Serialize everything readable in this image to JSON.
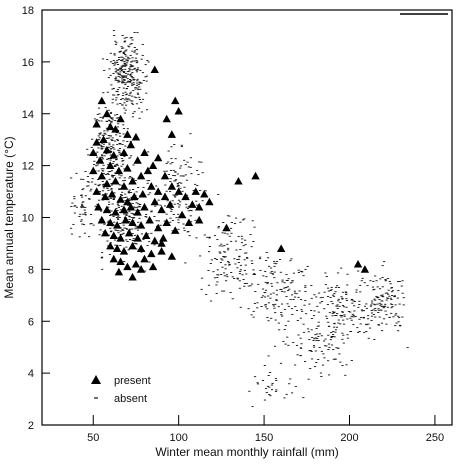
{
  "chart_data": {
    "type": "scatter",
    "title": "",
    "xlabel": "Winter mean monthly rainfall (mm)",
    "ylabel": "Mean annual temperature (°C)",
    "xlim": [
      20,
      260
    ],
    "ylim": [
      2,
      18
    ],
    "xticks": [
      50,
      100,
      150,
      200,
      250
    ],
    "yticks": [
      2,
      4,
      6,
      8,
      10,
      12,
      14,
      16,
      18
    ],
    "grid": false,
    "legend_position": "bottom-left",
    "colors": {
      "present": "#000000",
      "absent": "#111111"
    },
    "series": [
      {
        "name": "present",
        "marker": "triangle",
        "points": [
          [
            55,
            14.5
          ],
          [
            58,
            14
          ],
          [
            52,
            13.6
          ],
          [
            60,
            13.5
          ],
          [
            56,
            13
          ],
          [
            63,
            13.4
          ],
          [
            52,
            12.9
          ],
          [
            66,
            13.8
          ],
          [
            70,
            13.2
          ],
          [
            58,
            12.6
          ],
          [
            50,
            12.5
          ],
          [
            54,
            12.2
          ],
          [
            62,
            12.4
          ],
          [
            68,
            12.5
          ],
          [
            72,
            12.8
          ],
          [
            75,
            13.1
          ],
          [
            60,
            12
          ],
          [
            65,
            11.8
          ],
          [
            70,
            11.9
          ],
          [
            55,
            11.6
          ],
          [
            50,
            11.8
          ],
          [
            58,
            11.3
          ],
          [
            63,
            11.4
          ],
          [
            68,
            11.2
          ],
          [
            73,
            11.4
          ],
          [
            78,
            11.6
          ],
          [
            82,
            11.8
          ],
          [
            52,
            11
          ],
          [
            57,
            10.8
          ],
          [
            61,
            10.9
          ],
          [
            66,
            10.7
          ],
          [
            70,
            10.6
          ],
          [
            74,
            10.8
          ],
          [
            79,
            10.9
          ],
          [
            84,
            11.2
          ],
          [
            88,
            11
          ],
          [
            92,
            10.8
          ],
          [
            53,
            10.4
          ],
          [
            58,
            10.3
          ],
          [
            63,
            10.2
          ],
          [
            68,
            10.3
          ],
          [
            72,
            10.4
          ],
          [
            76,
            10.2
          ],
          [
            80,
            10.4
          ],
          [
            86,
            10.6
          ],
          [
            90,
            10.3
          ],
          [
            95,
            10.5
          ],
          [
            55,
            9.9
          ],
          [
            60,
            9.8
          ],
          [
            64,
            9.7
          ],
          [
            69,
            9.9
          ],
          [
            73,
            9.8
          ],
          [
            78,
            9.7
          ],
          [
            83,
            9.9
          ],
          [
            88,
            9.6
          ],
          [
            93,
            9.8
          ],
          [
            98,
            9.5
          ],
          [
            57,
            9.4
          ],
          [
            62,
            9.3
          ],
          [
            66,
            9.2
          ],
          [
            71,
            9.4
          ],
          [
            76,
            9.2
          ],
          [
            81,
            9.3
          ],
          [
            86,
            9.1
          ],
          [
            91,
            9.2
          ],
          [
            60,
            8.9
          ],
          [
            64,
            8.8
          ],
          [
            68,
            8.7
          ],
          [
            73,
            8.9
          ],
          [
            78,
            8.8
          ],
          [
            84,
            8.6
          ],
          [
            90,
            8.7
          ],
          [
            96,
            8.5
          ],
          [
            62,
            8.4
          ],
          [
            66,
            8.3
          ],
          [
            70,
            8.1
          ],
          [
            75,
            8.2
          ],
          [
            80,
            8.4
          ],
          [
            65,
            7.9
          ],
          [
            73,
            7.7
          ],
          [
            78,
            8
          ],
          [
            85,
            8.1
          ],
          [
            76,
            12.2
          ],
          [
            80,
            12.5
          ],
          [
            85,
            12
          ],
          [
            88,
            12.3
          ],
          [
            92,
            11.6
          ],
          [
            96,
            11.2
          ],
          [
            100,
            11
          ],
          [
            104,
            10.8
          ],
          [
            108,
            10.5
          ],
          [
            112,
            10.4
          ],
          [
            110,
            11
          ],
          [
            115,
            10.9
          ],
          [
            118,
            10.6
          ],
          [
            102,
            10.1
          ],
          [
            106,
            9.8
          ],
          [
            112,
            9.9
          ],
          [
            98,
            14.5
          ],
          [
            100,
            14.1
          ],
          [
            93,
            13.8
          ],
          [
            96,
            13.2
          ],
          [
            86,
            15.7
          ],
          [
            128,
            9.6
          ],
          [
            135,
            11.4
          ],
          [
            145,
            11.6
          ],
          [
            160,
            8.8
          ],
          [
            205,
            8.2
          ],
          [
            209,
            8
          ],
          [
            90,
            9
          ]
        ]
      },
      {
        "name": "absent",
        "marker": "dash",
        "points_description": "dense field of small dashes",
        "clusters": [
          {
            "cx": 70,
            "cy": 15.5,
            "sx": 9,
            "sy": 1.1,
            "n": 280
          },
          {
            "cx": 60,
            "cy": 12.5,
            "sx": 9,
            "sy": 1.6,
            "n": 260
          },
          {
            "cx": 70,
            "cy": 10,
            "sx": 14,
            "sy": 1.3,
            "n": 240
          },
          {
            "cx": 45,
            "cy": 10.5,
            "sx": 6,
            "sy": 1.0,
            "n": 60
          },
          {
            "cx": 100,
            "cy": 11,
            "sx": 12,
            "sy": 1.5,
            "n": 140
          },
          {
            "cx": 130,
            "cy": 8.5,
            "sx": 16,
            "sy": 1.4,
            "n": 140
          },
          {
            "cx": 160,
            "cy": 7.2,
            "sx": 18,
            "sy": 1.2,
            "n": 140
          },
          {
            "cx": 195,
            "cy": 6.5,
            "sx": 16,
            "sy": 1.1,
            "n": 150
          },
          {
            "cx": 220,
            "cy": 6.8,
            "sx": 10,
            "sy": 1.0,
            "n": 130
          },
          {
            "cx": 180,
            "cy": 5,
            "sx": 20,
            "sy": 0.9,
            "n": 90
          },
          {
            "cx": 155,
            "cy": 3.5,
            "sx": 10,
            "sy": 0.6,
            "n": 30
          }
        ]
      }
    ],
    "legend": [
      {
        "label": "present",
        "marker": "triangle"
      },
      {
        "label": "absent",
        "marker": "dash"
      }
    ]
  }
}
